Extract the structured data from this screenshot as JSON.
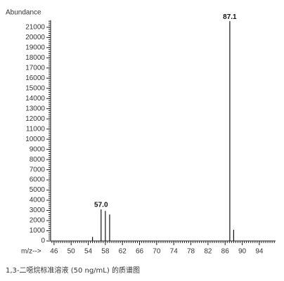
{
  "chart_data": {
    "type": "stem",
    "ylabel": "Abundance",
    "xlabel": "m/z-->",
    "caption": "1,3-二噁烷标准溶液 (50 ng/mL) 的质谱图",
    "x": [
      55,
      57,
      58,
      59,
      87.1,
      88
    ],
    "values": [
      400,
      3100,
      2950,
      2600,
      21600,
      1100
    ],
    "color": "#111111",
    "annotations": [
      {
        "x": 57,
        "y": 3100,
        "label": "57.0"
      },
      {
        "x": 87.1,
        "y": 21600,
        "label": "87.1"
      }
    ],
    "xlim": [
      45.2,
      97.8
    ],
    "xticks": [
      46,
      50,
      54,
      58,
      62,
      66,
      70,
      74,
      78,
      82,
      86,
      90,
      94
    ],
    "ylim": [
      0,
      21700
    ],
    "yticks": [
      0,
      1000,
      2000,
      3000,
      4000,
      5000,
      6000,
      7000,
      8000,
      9000,
      10000,
      11000,
      12000,
      13000,
      14000,
      15000,
      16000,
      17000,
      18000,
      19000,
      20000,
      21000
    ],
    "minor_ticks": {
      "x": 0.5,
      "y": 200
    }
  }
}
